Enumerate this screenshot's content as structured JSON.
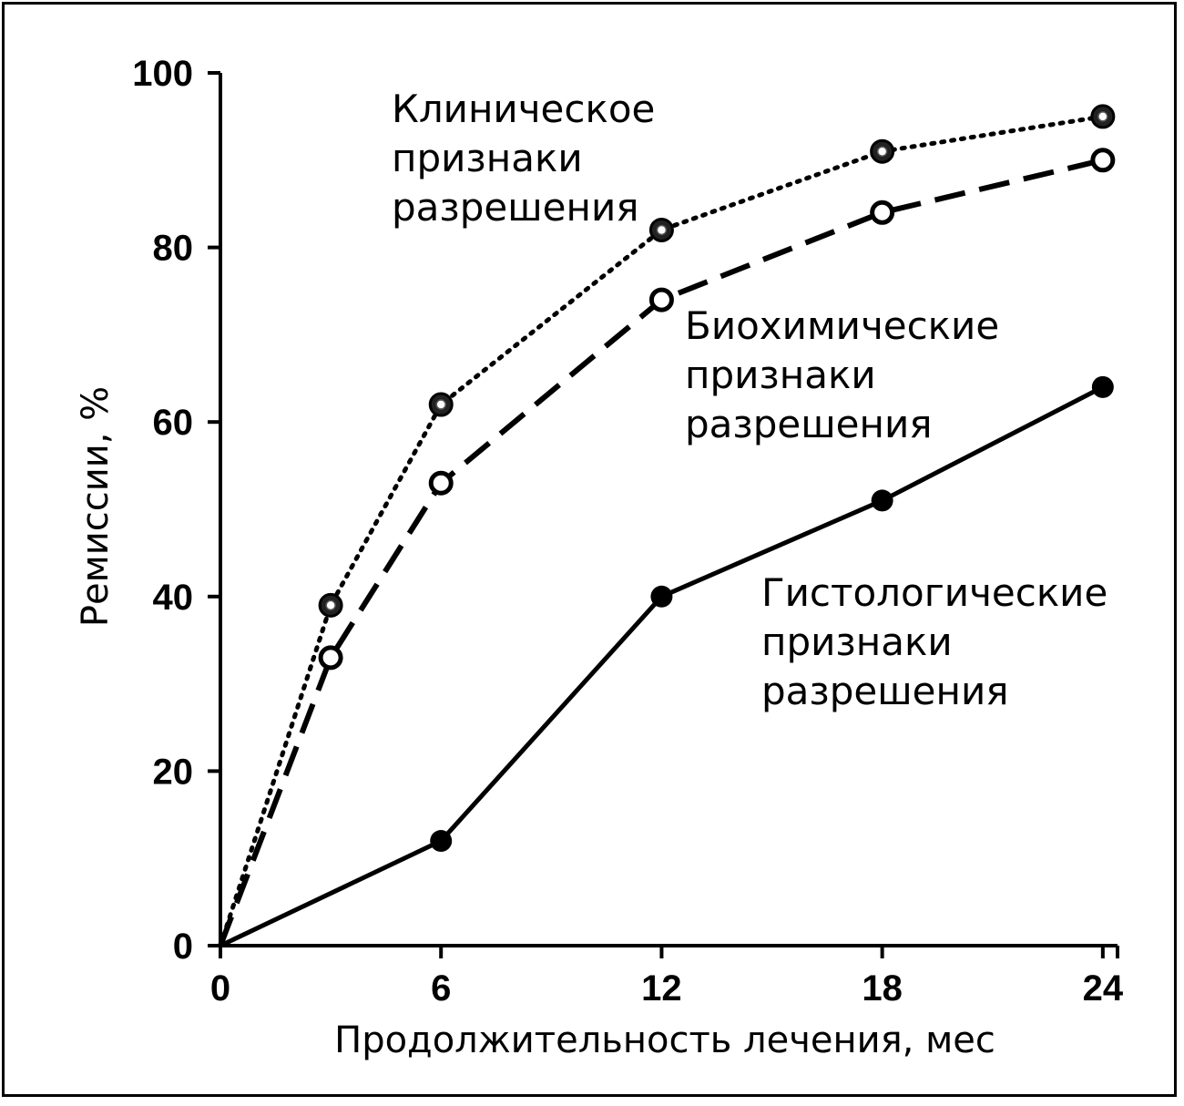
{
  "chart_data": {
    "type": "line",
    "xlabel": "Продолжительность лечения, мес",
    "ylabel": "Ремиссии, %",
    "xlim": [
      0,
      24.4
    ],
    "ylim": [
      0,
      100
    ],
    "x_ticks": [
      0,
      6,
      12,
      18,
      24
    ],
    "y_ticks": [
      0,
      20,
      40,
      60,
      80,
      100
    ],
    "grid": false,
    "legend": "inline labels",
    "series": [
      {
        "name": "Клиническое признаки разрешения",
        "label_lines": [
          "Клиническое",
          "признаки",
          "разрешения"
        ],
        "style": "dotted",
        "marker": "shaded-circle",
        "x": [
          0,
          3,
          6,
          12,
          18,
          24
        ],
        "y": [
          0,
          39,
          62,
          82,
          91,
          95
        ]
      },
      {
        "name": "Биохимические признаки разрешения",
        "label_lines": [
          "Биохимические",
          "признаки",
          "разрешения"
        ],
        "style": "dashed",
        "marker": "open-circle",
        "x": [
          0,
          3,
          6,
          12,
          18,
          24
        ],
        "y": [
          0,
          33,
          53,
          74,
          84,
          90
        ]
      },
      {
        "name": "Гистологические признаки разрешения",
        "label_lines": [
          "Гистологические",
          "признаки",
          "разрешения"
        ],
        "style": "solid",
        "marker": "filled-circle",
        "x": [
          0,
          6,
          12,
          18,
          24
        ],
        "y": [
          0,
          12,
          40,
          51,
          64
        ]
      }
    ]
  }
}
